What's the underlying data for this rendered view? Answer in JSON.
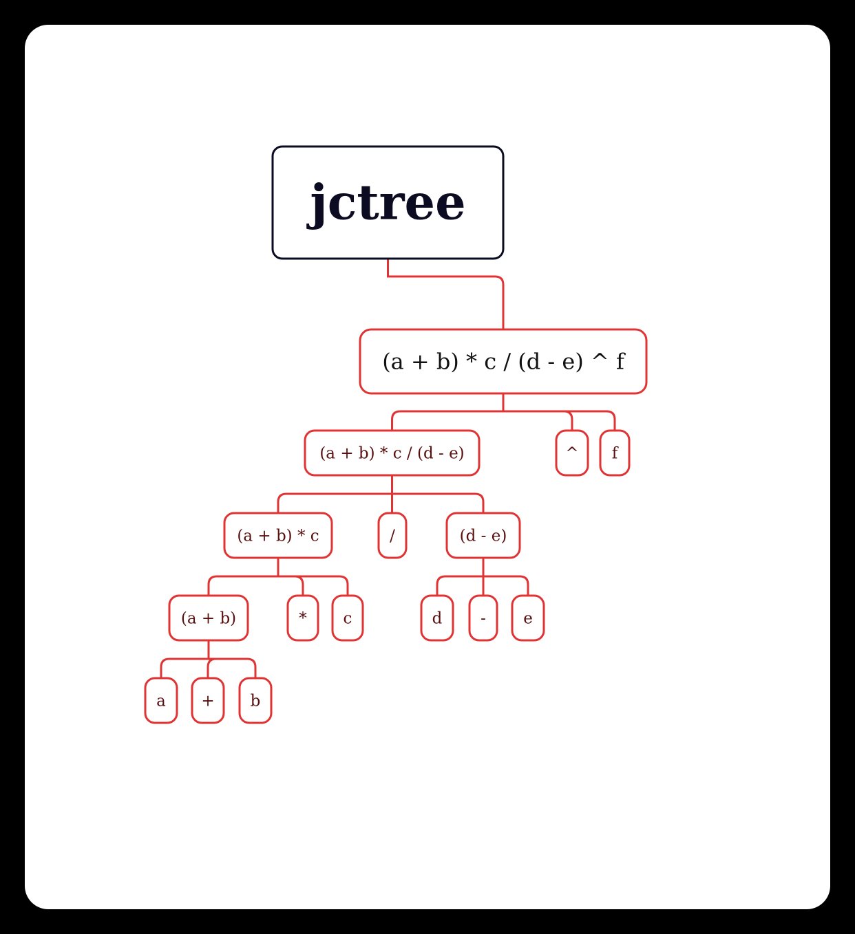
{
  "colors": {
    "background": "#000000",
    "card": "#ffffff",
    "root_border": "#0b0b22",
    "branch_border": "#e03434",
    "node_text": "#5a0f0f"
  },
  "tree": {
    "root": {
      "label": "jctree"
    },
    "nodes": [
      {
        "id": "expr_full",
        "parent": "root",
        "label": "(a + b) * c / (d - e) ^ f"
      },
      {
        "id": "expr_left",
        "parent": "expr_full",
        "label": "(a + b) * c / (d - e)"
      },
      {
        "id": "op_caret",
        "parent": "expr_full",
        "label": "^"
      },
      {
        "id": "leaf_f",
        "parent": "expr_full",
        "label": "f"
      },
      {
        "id": "expr_mul",
        "parent": "expr_left",
        "label": "(a + b) * c"
      },
      {
        "id": "op_div",
        "parent": "expr_left",
        "label": "/"
      },
      {
        "id": "expr_sub",
        "parent": "expr_left",
        "label": "(d - e)"
      },
      {
        "id": "expr_add",
        "parent": "expr_mul",
        "label": "(a + b)"
      },
      {
        "id": "op_mul",
        "parent": "expr_mul",
        "label": "*"
      },
      {
        "id": "leaf_c",
        "parent": "expr_mul",
        "label": "c"
      },
      {
        "id": "leaf_d",
        "parent": "expr_sub",
        "label": "d"
      },
      {
        "id": "op_minus",
        "parent": "expr_sub",
        "label": "-"
      },
      {
        "id": "leaf_e",
        "parent": "expr_sub",
        "label": "e"
      },
      {
        "id": "leaf_a",
        "parent": "expr_add",
        "label": "a"
      },
      {
        "id": "op_plus",
        "parent": "expr_add",
        "label": "+"
      },
      {
        "id": "leaf_b",
        "parent": "expr_add",
        "label": "b"
      }
    ]
  }
}
